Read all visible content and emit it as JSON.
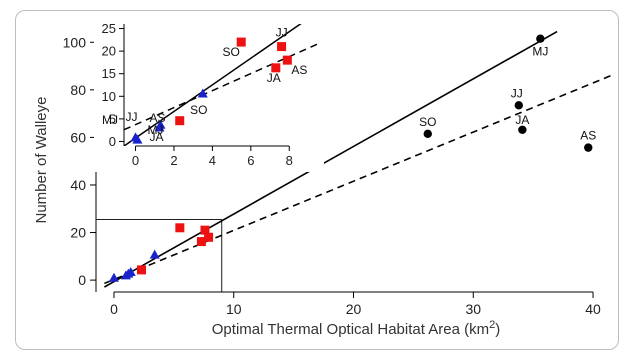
{
  "chart_data": [
    {
      "type": "scatter",
      "xlabel": "Optimal Thermal Optical Habitat Area (km",
      "xlabel_sup": "2",
      "xlabel_close": ")",
      "ylabel": "Number of Walleye",
      "xlim": [
        -1.5,
        42
      ],
      "ylim": [
        -5,
        106
      ],
      "x_ticks": [
        0,
        10,
        20,
        30,
        40
      ],
      "x_tick_labels": [
        "0",
        "10",
        "20",
        "30",
        "40"
      ],
      "y_ticks": [
        0,
        20,
        40,
        60,
        80,
        100
      ],
      "y_tick_labels": [
        "0",
        "20",
        "40",
        "60",
        "80",
        "100"
      ],
      "series": [
        {
          "marker": "circle",
          "color": "#000000",
          "points": [
            {
              "x": 35.6,
              "y": 101.5,
              "label": "MJ"
            },
            {
              "x": 33.8,
              "y": 73.5,
              "label": "JJ"
            },
            {
              "x": 34.1,
              "y": 63.2,
              "label": "JA"
            },
            {
              "x": 39.6,
              "y": 55.7,
              "label": "AS"
            },
            {
              "x": 26.2,
              "y": 61.5,
              "label": "SO"
            }
          ]
        },
        {
          "marker": "square",
          "color": "#ee1111",
          "points": [
            {
              "x": 5.5,
              "y": 22
            },
            {
              "x": 7.6,
              "y": 21
            },
            {
              "x": 7.9,
              "y": 18
            },
            {
              "x": 7.3,
              "y": 16.2
            },
            {
              "x": 2.3,
              "y": 4.3
            }
          ]
        },
        {
          "marker": "triangle",
          "color": "#1a22cc",
          "points": [
            {
              "x": 0,
              "y": 0.8
            },
            {
              "x": 1.2,
              "y": 2.5
            },
            {
              "x": 1.4,
              "y": 3.2
            },
            {
              "x": 1.0,
              "y": 1.8
            },
            {
              "x": 3.4,
              "y": 10.5
            }
          ]
        }
      ],
      "lines": [
        {
          "style": "solid",
          "from": [
            -0.8,
            -2.9
          ],
          "to": [
            37.0,
            104.5
          ]
        },
        {
          "style": "dashed",
          "from": [
            -0.8,
            -1.4
          ],
          "to": [
            41.5,
            86.0
          ]
        }
      ],
      "zoom_box": {
        "x": [
          -1.5,
          9
        ],
        "y": [
          -5,
          25.5
        ]
      }
    },
    {
      "type": "scatter",
      "inset": true,
      "xlim": [
        -0.6,
        9.6
      ],
      "ylim": [
        -1,
        26
      ],
      "x_ticks": [
        0,
        2,
        4,
        6,
        8
      ],
      "x_tick_labels": [
        "0",
        "2",
        "4",
        "6",
        "8"
      ],
      "y_ticks": [
        0,
        5,
        10,
        15,
        20,
        25
      ],
      "y_tick_labels": [
        "0",
        "5",
        "10",
        "15",
        "20",
        "25"
      ],
      "series": [
        {
          "marker": "square",
          "color": "#ee1111",
          "points": [
            {
              "x": 5.5,
              "y": 22,
              "label": "SO"
            },
            {
              "x": 7.6,
              "y": 21,
              "label": "JJ"
            },
            {
              "x": 7.9,
              "y": 18,
              "label": "AS"
            },
            {
              "x": 7.3,
              "y": 16.3,
              "label": "JA"
            },
            {
              "x": 2.3,
              "y": 4.6,
              "label": ""
            }
          ]
        },
        {
          "marker": "triangle",
          "color": "#1a22cc",
          "points": [
            {
              "x": 0,
              "y": 0.8,
              "label": "JJ"
            },
            {
              "x": 1.3,
              "y": 3.6,
              "label": "JA"
            },
            {
              "x": 3.5,
              "y": 10.5,
              "label": "SO"
            },
            {
              "x": 1.25,
              "y": 3.0,
              "label": "AS"
            },
            {
              "x": 0.1,
              "y": 0.3,
              "label": "MJ"
            }
          ]
        }
      ],
      "extra_labels": [
        "MJ"
      ],
      "lines": [
        {
          "style": "solid",
          "from": [
            -0.6,
            -1.0
          ],
          "to": [
            9.6,
            29.0
          ]
        },
        {
          "style": "dashed",
          "from": [
            -0.6,
            2.6
          ],
          "to": [
            9.6,
            21.8
          ]
        }
      ]
    }
  ]
}
